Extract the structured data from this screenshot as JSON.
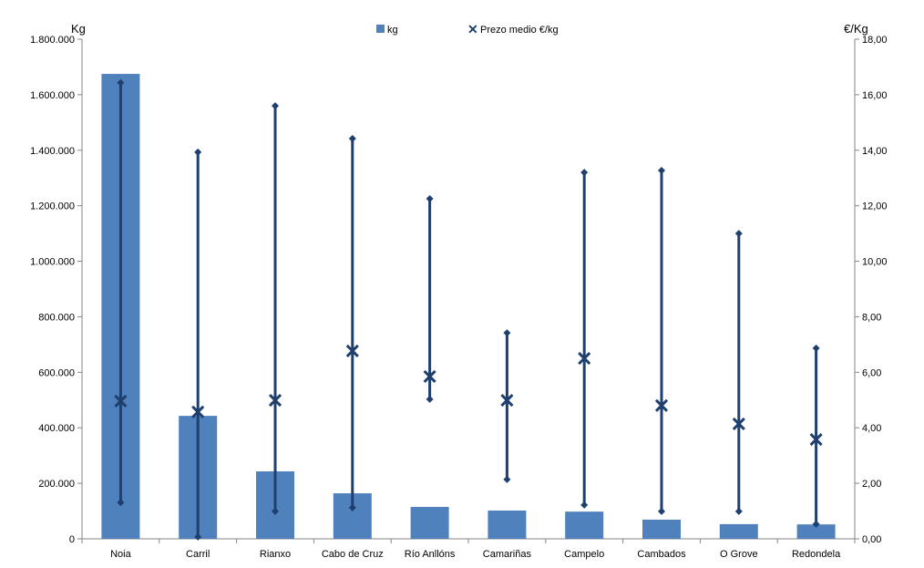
{
  "chart_data": {
    "type": "bar",
    "title": "",
    "ylabel": "Kg",
    "y2label": "€/Kg",
    "ylim": [
      0,
      1800000
    ],
    "y2lim": [
      0,
      18
    ],
    "yticks": [
      "0",
      "200.000",
      "400.000",
      "600.000",
      "800.000",
      "1.000.000",
      "1.200.000",
      "1.400.000",
      "1.600.000",
      "1.800.000"
    ],
    "y2ticks": [
      "0,00",
      "2,00",
      "4,00",
      "6,00",
      "8,00",
      "10,00",
      "12,00",
      "14,00",
      "16,00",
      "18,00"
    ],
    "legend_position": "top-center",
    "categories": [
      "Noia",
      "Carril",
      "Rianxo",
      "Cabo de Cruz",
      "Río Anllóns",
      "Camariñas",
      "Campelo",
      "Cambados",
      "O Grove",
      "Redondela"
    ],
    "series": [
      {
        "name": "kg",
        "type": "bar",
        "axis": "left",
        "color": "#4f81bd",
        "values": [
          1675000,
          443000,
          243000,
          164000,
          115000,
          102000,
          98000,
          69000,
          53000,
          52000
        ]
      },
      {
        "name": "Prezo medio €/kg",
        "type": "high-low-avg",
        "axis": "right",
        "color": "#1f3f6e",
        "max": [
          16.43,
          13.93,
          15.6,
          14.42,
          12.25,
          7.42,
          13.2,
          13.27,
          11.0,
          6.87
        ],
        "min": [
          1.31,
          0.07,
          0.99,
          1.12,
          5.03,
          2.14,
          1.22,
          0.99,
          0.99,
          0.53
        ],
        "avg": [
          4.96,
          4.57,
          4.99,
          6.77,
          5.85,
          4.99,
          6.5,
          4.8,
          4.14,
          3.58
        ]
      }
    ]
  }
}
